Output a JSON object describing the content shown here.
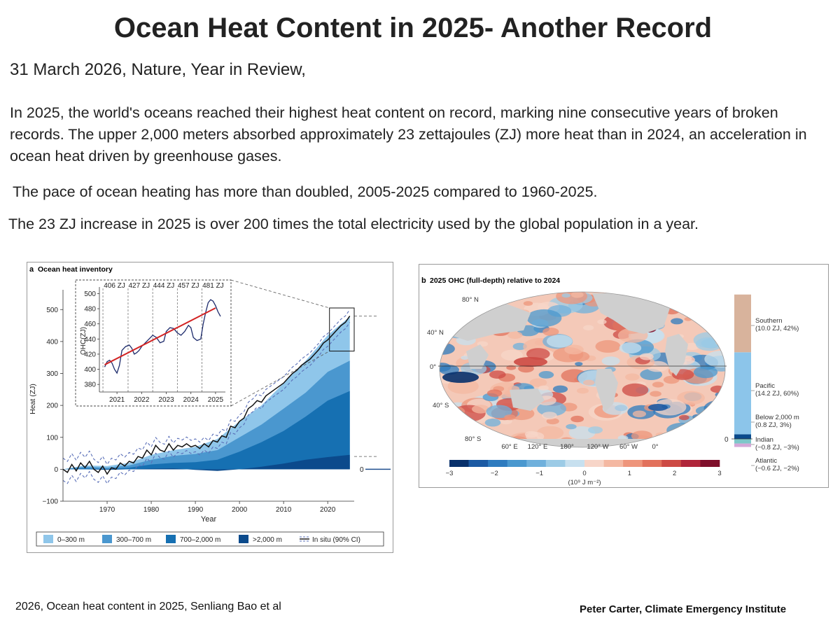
{
  "title": "Ocean Heat Content in 2025- Another Record",
  "subtitle": "31 March 2026, Nature, Year in Review,",
  "paragraph1": "In 2025, the world's oceans reached their highest heat content on record, marking nine consecutive years of broken records. The upper 2,000 meters absorbed approximately 23 zettajoules (ZJ) more heat than in 2024, an acceleration in ocean heat driven by greenhouse gases.",
  "paragraph2": "The pace of ocean heating has more than doubled,  2005-2025 compared to 1960-2025.",
  "paragraph3": "The 23 ZJ increase in 2025 is over 200 times the total electricity used by the global population in a year.",
  "footer_left": "2026, Ocean heat content in 2025, Senliang Bao et al",
  "footer_right": "Peter Carter, Climate Emergency Institute",
  "colors": {
    "c0_300": "#8fc6ea",
    "c300_700": "#4a97cf",
    "c700_2000": "#1670b2",
    "cgt2000": "#0b4a8c",
    "insitu": "#3a3a8c",
    "trend": "#d22323"
  },
  "chart_data": [
    {
      "type": "area",
      "panel_letter": "a",
      "title": "Ocean heat inventory",
      "xlabel": "Year",
      "ylabel": "Heat (ZJ)",
      "xlim": [
        1960,
        2026
      ],
      "ylim": [
        -100,
        540
      ],
      "xticks": [
        1970,
        1980,
        1990,
        2000,
        2010,
        2020
      ],
      "yticks": [
        -100,
        0,
        100,
        200,
        300,
        400,
        500
      ],
      "zero_label": "0",
      "x": [
        1960,
        1965,
        1970,
        1975,
        1980,
        1985,
        1990,
        1995,
        2000,
        2005,
        2010,
        2015,
        2020,
        2025
      ],
      "series": [
        {
          "name": "0–300 m",
          "stack_top": [
            0,
            12,
            10,
            20,
            45,
            60,
            70,
            95,
            150,
            200,
            270,
            340,
            420,
            478
          ]
        },
        {
          "name": "300–700 m",
          "stack_top": [
            0,
            8,
            5,
            12,
            30,
            42,
            48,
            60,
            100,
            140,
            190,
            240,
            305,
            340
          ]
        },
        {
          "name": "700–2,000 m",
          "stack_top": [
            0,
            3,
            0,
            5,
            15,
            20,
            22,
            30,
            55,
            85,
            120,
            165,
            215,
            245
          ]
        },
        {
          "name": ">2,000 m",
          "stack_top": [
            0,
            0,
            -2,
            0,
            2,
            3,
            -2,
            -5,
            0,
            8,
            18,
            30,
            38,
            45
          ]
        }
      ],
      "insitu_name": "In situ (90% CI)",
      "insitu": [
        [
          1960,
          0
        ],
        [
          1961,
          -10
        ],
        [
          1962,
          15
        ],
        [
          1963,
          -5
        ],
        [
          1964,
          20
        ],
        [
          1965,
          5
        ],
        [
          1966,
          25
        ],
        [
          1967,
          0
        ],
        [
          1968,
          -10
        ],
        [
          1969,
          10
        ],
        [
          1970,
          -15
        ],
        [
          1971,
          5
        ],
        [
          1972,
          0
        ],
        [
          1973,
          20
        ],
        [
          1974,
          10
        ],
        [
          1975,
          25
        ],
        [
          1976,
          20
        ],
        [
          1977,
          40
        ],
        [
          1978,
          35
        ],
        [
          1979,
          60
        ],
        [
          1980,
          45
        ],
        [
          1981,
          75
        ],
        [
          1982,
          60
        ],
        [
          1983,
          55
        ],
        [
          1984,
          80
        ],
        [
          1985,
          60
        ],
        [
          1986,
          75
        ],
        [
          1987,
          70
        ],
        [
          1988,
          80
        ],
        [
          1989,
          70
        ],
        [
          1990,
          75
        ],
        [
          1991,
          65
        ],
        [
          1992,
          80
        ],
        [
          1993,
          70
        ],
        [
          1994,
          90
        ],
        [
          1995,
          85
        ],
        [
          1996,
          105
        ],
        [
          1997,
          100
        ],
        [
          1998,
          135
        ],
        [
          1999,
          130
        ],
        [
          2000,
          150
        ],
        [
          2001,
          160
        ],
        [
          2002,
          190
        ],
        [
          2003,
          200
        ],
        [
          2004,
          215
        ],
        [
          2005,
          210
        ],
        [
          2006,
          230
        ],
        [
          2007,
          240
        ],
        [
          2008,
          250
        ],
        [
          2009,
          260
        ],
        [
          2010,
          270
        ],
        [
          2011,
          285
        ],
        [
          2012,
          300
        ],
        [
          2013,
          310
        ],
        [
          2014,
          325
        ],
        [
          2015,
          335
        ],
        [
          2016,
          345
        ],
        [
          2017,
          360
        ],
        [
          2018,
          375
        ],
        [
          2019,
          395
        ],
        [
          2020,
          405
        ],
        [
          2021,
          420
        ],
        [
          2022,
          435
        ],
        [
          2023,
          450
        ],
        [
          2024,
          460
        ],
        [
          2025,
          480
        ]
      ],
      "inset": {
        "ylabel": "OHC(ZJ)",
        "xticks": [
          2021,
          2022,
          2023,
          2024,
          2025
        ],
        "yticks": [
          380,
          400,
          420,
          440,
          460,
          480,
          500
        ],
        "xlim": [
          2020.4,
          2025.4
        ],
        "ylim": [
          370,
          505
        ],
        "year_labels": [
          {
            "label": "406 ZJ",
            "year": 2020.9
          },
          {
            "label": "427 ZJ",
            "year": 2021.9
          },
          {
            "label": "444 ZJ",
            "year": 2022.9
          },
          {
            "label": "457 ZJ",
            "year": 2023.9
          },
          {
            "label": "481 ZJ",
            "year": 2024.9
          }
        ],
        "monthly": [
          [
            2020.5,
            403
          ],
          [
            2020.6,
            410
          ],
          [
            2020.7,
            412
          ],
          [
            2020.8,
            408
          ],
          [
            2020.9,
            400
          ],
          [
            2021.0,
            395
          ],
          [
            2021.1,
            405
          ],
          [
            2021.2,
            425
          ],
          [
            2021.35,
            430
          ],
          [
            2021.5,
            432
          ],
          [
            2021.6,
            428
          ],
          [
            2021.7,
            420
          ],
          [
            2021.8,
            422
          ],
          [
            2021.9,
            425
          ],
          [
            2022.0,
            430
          ],
          [
            2022.15,
            435
          ],
          [
            2022.3,
            440
          ],
          [
            2022.45,
            445
          ],
          [
            2022.6,
            442
          ],
          [
            2022.75,
            435
          ],
          [
            2022.9,
            437
          ],
          [
            2023.0,
            450
          ],
          [
            2023.15,
            455
          ],
          [
            2023.3,
            454
          ],
          [
            2023.45,
            448
          ],
          [
            2023.6,
            445
          ],
          [
            2023.75,
            450
          ],
          [
            2023.9,
            458
          ],
          [
            2024.0,
            455
          ],
          [
            2024.1,
            442
          ],
          [
            2024.25,
            438
          ],
          [
            2024.4,
            440
          ],
          [
            2024.5,
            460
          ],
          [
            2024.6,
            475
          ],
          [
            2024.7,
            488
          ],
          [
            2024.8,
            492
          ],
          [
            2024.9,
            490
          ],
          [
            2025.0,
            484
          ],
          [
            2025.1,
            476
          ],
          [
            2025.2,
            470
          ]
        ],
        "trend": [
          [
            2020.5,
            406
          ],
          [
            2025.0,
            481
          ]
        ]
      }
    },
    {
      "type": "heatmap",
      "panel_letter": "b",
      "title": "2025 OHC (full-depth) relative to 2024",
      "lat_labels": [
        "80° N",
        "40° N",
        "0°",
        "40° S",
        "80° S"
      ],
      "lon_labels": [
        "60° E",
        "120° E",
        "180°",
        "120° W",
        "60° W",
        "0°"
      ],
      "colorbar_ticks": [
        "−3",
        "−2",
        "−1",
        "0",
        "1",
        "2",
        "3"
      ],
      "colorbar_range": [
        -3,
        3
      ],
      "colorbar_unit": "(10⁹ J m⁻²)",
      "colorbar_colors": [
        "#08306b",
        "#1c5aa3",
        "#2e7bbf",
        "#4a98cf",
        "#6fb0dc",
        "#9ccbe6",
        "#c7e0ef",
        "#f7d5c8",
        "#f4b8a2",
        "#ee957b",
        "#e2715c",
        "#cd4a44",
        "#b0263a",
        "#7f0f2b"
      ],
      "basins": [
        {
          "name": "Southern",
          "detail": "(10.0 ZJ, 42%)",
          "value": 10.0,
          "color": "#d8b39c"
        },
        {
          "name": "Pacific",
          "detail": "(14.2 ZJ, 60%)",
          "value": 14.2,
          "color": "#8cc5ea"
        },
        {
          "name": "Below 2,000 m",
          "detail": "(0.8 ZJ, 3%)",
          "value": 0.8,
          "color": "#0b4a8c"
        },
        {
          "name": "Indian",
          "detail": "(−0.8 ZJ, −3%)",
          "value": -0.8,
          "color": "#7ec7c9"
        },
        {
          "name": "Atlantic",
          "detail": "(−0.6 ZJ, −2%)",
          "value": -0.6,
          "color": "#d4a8d8"
        }
      ],
      "bar_zero_label": "0"
    }
  ]
}
